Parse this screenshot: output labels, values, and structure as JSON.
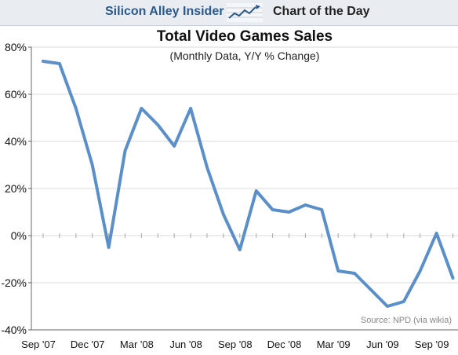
{
  "header": {
    "brand": "Silicon Alley Insider",
    "logo_icon": "rising-chart-icon",
    "section": "Chart of the Day"
  },
  "chart_data": {
    "type": "line",
    "title": "Total Video Games Sales",
    "subtitle": "(Monthly Data, Y/Y % Change)",
    "xlabel": "",
    "ylabel": "",
    "ylim": [
      -40,
      80
    ],
    "yticks": [
      80,
      60,
      40,
      20,
      0,
      -20,
      -40
    ],
    "ytick_labels": [
      "80%",
      "60%",
      "40%",
      "20%",
      "0%",
      "-20%",
      "-40%"
    ],
    "xtick_labels": [
      "Sep '07",
      "Dec '07",
      "Mar '08",
      "Jun '08",
      "Sep '08",
      "Dec '08",
      "Mar '09",
      "Jun '09",
      "Sep '09"
    ],
    "grid": true,
    "line_color": "#5b8fc9",
    "months": [
      "Sep '07",
      "Oct '07",
      "Nov '07",
      "Dec '07",
      "Jan '08",
      "Feb '08",
      "Mar '08",
      "Apr '08",
      "May '08",
      "Jun '08",
      "Jul '08",
      "Aug '08",
      "Sep '08",
      "Oct '08",
      "Nov '08",
      "Dec '08",
      "Jan '09",
      "Feb '09",
      "Mar '09",
      "Apr '09",
      "May '09",
      "Jun '09",
      "Jul '09",
      "Aug '09",
      "Sep '09",
      "Oct '09"
    ],
    "values": [
      74,
      73,
      54,
      30,
      -5,
      36,
      54,
      47,
      38,
      54,
      29,
      9,
      -6,
      19,
      11,
      10,
      13,
      11,
      -15,
      -16,
      -23,
      -30,
      -28,
      -15,
      1,
      -18
    ],
    "source": "Source: NPD (via wikia)"
  }
}
